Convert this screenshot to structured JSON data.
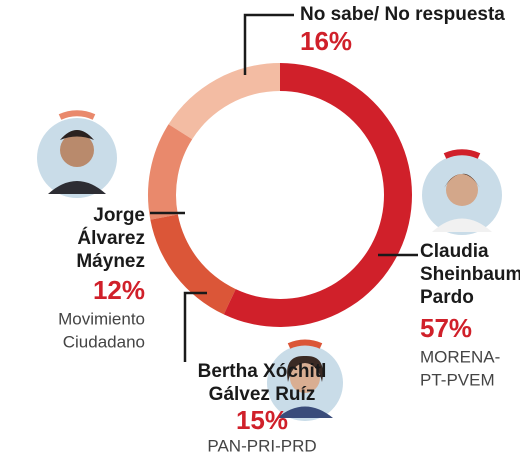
{
  "chart_data": {
    "type": "donut",
    "categories": [
      [
        "Claudia",
        "Sheinbaum",
        "Pardo"
      ],
      [
        "Bertha Xóchitl",
        "Gálvez Ruíz"
      ],
      [
        "Jorge",
        "Álvarez",
        "Máynez"
      ],
      [
        "No sabe/ No respuesta"
      ]
    ],
    "parties": [
      [
        "MORENA-",
        "PT-PVEM"
      ],
      [
        "PAN-PRI-PRD"
      ],
      [
        "Movimiento",
        "Ciudadano"
      ],
      []
    ],
    "values": [
      57,
      15,
      12,
      16
    ],
    "value_labels": [
      "57%",
      "15%",
      "12%",
      "16%"
    ],
    "colors": [
      "#d0202a",
      "#db5638",
      "#e9896c",
      "#f3bca3"
    ]
  }
}
